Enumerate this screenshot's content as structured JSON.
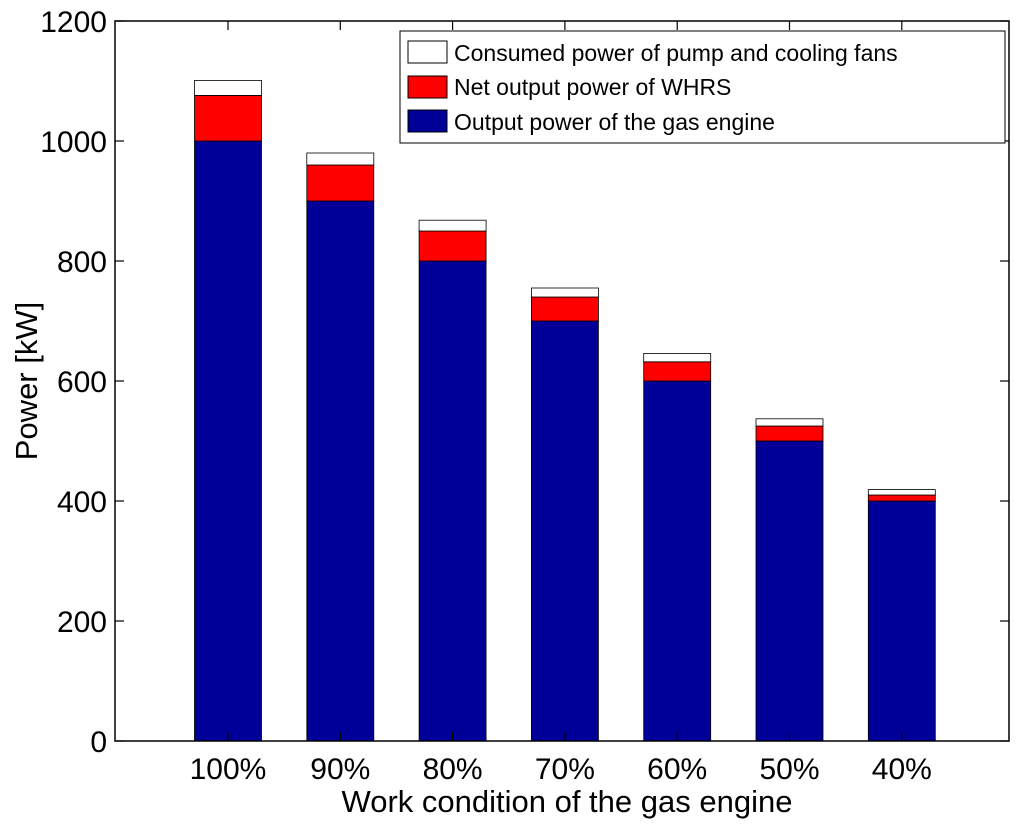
{
  "chart_data": {
    "type": "bar",
    "stacked": true,
    "categories": [
      "100%",
      "90%",
      "80%",
      "70%",
      "60%",
      "50%",
      "40%"
    ],
    "series": [
      {
        "name": "Output power of the gas engine",
        "values": [
          1000,
          900,
          800,
          700,
          600,
          500,
          400
        ],
        "color": "#000099"
      },
      {
        "name": "Net output power of WHRS",
        "values": [
          76,
          60,
          50,
          40,
          32,
          25,
          10
        ],
        "color": "#ff0000"
      },
      {
        "name": "Consumed power of pump and cooling fans",
        "values": [
          25,
          20,
          18,
          15,
          14,
          12,
          9
        ],
        "color": "#ffffff"
      }
    ],
    "legend_order": [
      "Consumed power of pump and cooling fans",
      "Net output power of WHRS",
      "Output power of the gas engine"
    ],
    "xlabel": "Work condition of the gas engine",
    "ylabel": "Power [kW]",
    "ylim": [
      0,
      1200
    ],
    "yticks": [
      0,
      200,
      400,
      600,
      800,
      1000,
      1200
    ],
    "grid": false,
    "legend_position": "top-right"
  }
}
